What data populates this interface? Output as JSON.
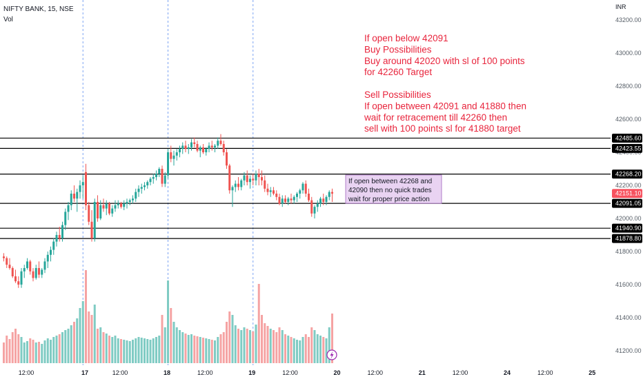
{
  "header": {
    "symbol": "NIFTY BANK, 15, NSE",
    "indicator": "Vol",
    "currency": "INR"
  },
  "colors": {
    "up": "#26a69a",
    "down": "#ef5350",
    "vol_up": "#7fcbc3",
    "vol_down": "#f5a3a3",
    "annotation": "#e8243c",
    "level_line": "#000000",
    "session_line": "#5b8def",
    "note_fill": "#e9d3f2",
    "note_border": "#b07cc8",
    "price_tag": "#f7525f"
  },
  "annotation_top": {
    "lines": [
      "If open below 42091",
      "Buy Possibilities",
      "Buy around 42020 with sl of 100 points",
      "for 42260 Target",
      "",
      "Sell Possibilities",
      "If open between 42091 and 41880 then",
      "wait for retracement till 42260 then",
      "sell with 100 points sl for 41880 target"
    ]
  },
  "annotation_box": {
    "lines": [
      "If open between 42268 and",
      "42090 then no quick trades",
      "wait for proper price action"
    ]
  },
  "chart_data": {
    "type": "candlestick",
    "title": "NIFTY BANK, 15, NSE",
    "y_axis": {
      "unit": "INR",
      "range": [
        41100,
        43300
      ],
      "ticks": [
        41200,
        41400,
        41600,
        41800,
        42000,
        42200,
        42400,
        42600,
        42800,
        43000,
        43200
      ],
      "tick_labels": [
        "41200.00",
        "41400.00",
        "41600.00",
        "41800.00",
        "42000.00",
        "42200.00",
        "42400.00",
        "42600.00",
        "42800.00",
        "43000.00",
        "43200.00"
      ]
    },
    "x_axis": {
      "labels": [
        "12:00",
        "17",
        "12:00",
        "18",
        "12:00",
        "19",
        "12:00",
        "20",
        "12:00",
        "21",
        "12:00",
        "24",
        "12:00",
        "25"
      ],
      "label_positions_bars": [
        8,
        28,
        40,
        56,
        69,
        85,
        98,
        114,
        127,
        143,
        156,
        172,
        185,
        201
      ],
      "session_starts_bars": [
        27,
        56,
        85
      ]
    },
    "last_price": 42151.1,
    "levels": [
      {
        "value": 42485.6,
        "label": "42485.60"
      },
      {
        "value": 42423.55,
        "label": "42423.55"
      },
      {
        "value": 42268.2,
        "label": "42268.20"
      },
      {
        "value": 42091.05,
        "label": "42091.05"
      },
      {
        "value": 41940.9,
        "label": "41940.90"
      },
      {
        "value": 41878.8,
        "label": "41878.80"
      }
    ],
    "candles": [
      [
        41770,
        41790,
        41740,
        41760,
        300
      ],
      [
        41760,
        41770,
        41700,
        41720,
        400
      ],
      [
        41720,
        41760,
        41690,
        41700,
        350
      ],
      [
        41700,
        41710,
        41640,
        41650,
        450
      ],
      [
        41650,
        41690,
        41610,
        41620,
        500
      ],
      [
        41620,
        41650,
        41580,
        41600,
        420
      ],
      [
        41600,
        41700,
        41580,
        41680,
        380
      ],
      [
        41680,
        41720,
        41640,
        41700,
        300
      ],
      [
        41700,
        41760,
        41690,
        41740,
        320
      ],
      [
        41740,
        41750,
        41660,
        41680,
        360
      ],
      [
        41680,
        41700,
        41620,
        41640,
        340
      ],
      [
        41640,
        41720,
        41630,
        41700,
        300
      ],
      [
        41700,
        41740,
        41640,
        41660,
        310
      ],
      [
        41660,
        41700,
        41640,
        41690,
        280
      ],
      [
        41690,
        41760,
        41670,
        41740,
        330
      ],
      [
        41740,
        41800,
        41700,
        41780,
        360
      ],
      [
        41780,
        41830,
        41740,
        41810,
        340
      ],
      [
        41810,
        41880,
        41780,
        41860,
        380
      ],
      [
        41860,
        41920,
        41830,
        41900,
        400
      ],
      [
        41900,
        41950,
        41860,
        41880,
        420
      ],
      [
        41880,
        41980,
        41860,
        41960,
        450
      ],
      [
        41960,
        42060,
        41930,
        42040,
        480
      ],
      [
        42040,
        42100,
        41990,
        42080,
        500
      ],
      [
        42080,
        42170,
        42050,
        42150,
        550
      ],
      [
        42150,
        42200,
        42100,
        42120,
        600
      ],
      [
        42120,
        42180,
        42040,
        42160,
        650
      ],
      [
        42160,
        42230,
        42120,
        42200,
        800
      ],
      [
        42200,
        42260,
        42120,
        42220,
        900
      ],
      [
        42280,
        42330,
        42050,
        42080,
        1350
      ],
      [
        42080,
        42100,
        41960,
        41980,
        750
      ],
      [
        41980,
        42050,
        41860,
        41880,
        700
      ],
      [
        41880,
        42120,
        41860,
        42100,
        850
      ],
      [
        42100,
        42140,
        41980,
        42000,
        500
      ],
      [
        42000,
        42110,
        41990,
        42080,
        520
      ],
      [
        42080,
        42120,
        42040,
        42060,
        450
      ],
      [
        42060,
        42110,
        42020,
        42090,
        430
      ],
      [
        42090,
        42100,
        42020,
        42030,
        400
      ],
      [
        42030,
        42080,
        42010,
        42060,
        380
      ],
      [
        42060,
        42110,
        42040,
        42080,
        400
      ],
      [
        42080,
        42110,
        42060,
        42090,
        360
      ],
      [
        42090,
        42100,
        42060,
        42070,
        350
      ],
      [
        42070,
        42110,
        42050,
        42090,
        340
      ],
      [
        42090,
        42120,
        42060,
        42100,
        330
      ],
      [
        42100,
        42120,
        42080,
        42110,
        320
      ],
      [
        42110,
        42140,
        42090,
        42120,
        340
      ],
      [
        42120,
        42180,
        42100,
        42160,
        360
      ],
      [
        42160,
        42200,
        42130,
        42180,
        380
      ],
      [
        42180,
        42210,
        42150,
        42190,
        370
      ],
      [
        42190,
        42220,
        42170,
        42200,
        360
      ],
      [
        42200,
        42230,
        42180,
        42220,
        350
      ],
      [
        42220,
        42250,
        42200,
        42240,
        340
      ],
      [
        42240,
        42270,
        42210,
        42250,
        360
      ],
      [
        42250,
        42290,
        42230,
        42270,
        380
      ],
      [
        42270,
        42310,
        42250,
        42300,
        400
      ],
      [
        42300,
        42320,
        42190,
        42210,
        700
      ],
      [
        42210,
        42280,
        42190,
        42260,
        520
      ],
      [
        42260,
        42420,
        42240,
        42400,
        1200
      ],
      [
        42400,
        42440,
        42340,
        42360,
        800
      ],
      [
        42360,
        42410,
        42320,
        42380,
        600
      ],
      [
        42380,
        42420,
        42350,
        42400,
        520
      ],
      [
        42400,
        42440,
        42370,
        42420,
        480
      ],
      [
        42420,
        42460,
        42390,
        42440,
        450
      ],
      [
        42440,
        42470,
        42400,
        42420,
        430
      ],
      [
        42420,
        42450,
        42390,
        42430,
        410
      ],
      [
        42430,
        42480,
        42410,
        42460,
        420
      ],
      [
        42460,
        42490,
        42430,
        42450,
        400
      ],
      [
        42450,
        42470,
        42400,
        42410,
        390
      ],
      [
        42410,
        42440,
        42370,
        42430,
        380
      ],
      [
        42430,
        42450,
        42390,
        42400,
        370
      ],
      [
        42400,
        42430,
        42380,
        42420,
        360
      ],
      [
        42420,
        42460,
        42400,
        42440,
        350
      ],
      [
        42440,
        42470,
        42410,
        42430,
        340
      ],
      [
        42430,
        42450,
        42400,
        42440,
        330
      ],
      [
        42440,
        42490,
        42420,
        42470,
        380
      ],
      [
        42470,
        42510,
        42440,
        42450,
        420
      ],
      [
        42450,
        42470,
        42380,
        42400,
        450
      ],
      [
        42400,
        42420,
        42300,
        42320,
        600
      ],
      [
        42320,
        42330,
        42150,
        42170,
        750
      ],
      [
        42170,
        42200,
        42070,
        42190,
        700
      ],
      [
        42190,
        42230,
        42160,
        42210,
        550
      ],
      [
        42210,
        42250,
        42170,
        42190,
        500
      ],
      [
        42190,
        42240,
        42170,
        42230,
        480
      ],
      [
        42230,
        42280,
        42200,
        42260,
        520
      ],
      [
        42260,
        42290,
        42200,
        42220,
        500
      ],
      [
        42220,
        42260,
        42180,
        42240,
        480
      ],
      [
        42240,
        42270,
        42200,
        42230,
        460
      ],
      [
        42230,
        42290,
        42200,
        42270,
        560
      ],
      [
        42270,
        42300,
        42200,
        42250,
        1150
      ],
      [
        42250,
        42290,
        42200,
        42230,
        700
      ],
      [
        42230,
        42260,
        42160,
        42180,
        580
      ],
      [
        42180,
        42210,
        42140,
        42160,
        540
      ],
      [
        42160,
        42190,
        42130,
        42170,
        500
      ],
      [
        42170,
        42190,
        42140,
        42150,
        480
      ],
      [
        42150,
        42170,
        42110,
        42130,
        450
      ],
      [
        42130,
        42150,
        42080,
        42090,
        520
      ],
      [
        42090,
        42140,
        42070,
        42120,
        480
      ],
      [
        42120,
        42140,
        42090,
        42100,
        420
      ],
      [
        42100,
        42130,
        42080,
        42120,
        400
      ],
      [
        42120,
        42150,
        42090,
        42110,
        380
      ],
      [
        42110,
        42140,
        42090,
        42130,
        360
      ],
      [
        42130,
        42160,
        42100,
        42150,
        340
      ],
      [
        42150,
        42180,
        42120,
        42170,
        330
      ],
      [
        42170,
        42220,
        42150,
        42210,
        380
      ],
      [
        42210,
        42230,
        42130,
        42150,
        420
      ],
      [
        42150,
        42180,
        42100,
        42110,
        380
      ],
      [
        42110,
        42130,
        42010,
        42030,
        520
      ],
      [
        42030,
        42080,
        42000,
        42070,
        480
      ],
      [
        42070,
        42110,
        42040,
        42090,
        420
      ],
      [
        42090,
        42130,
        42070,
        42120,
        400
      ],
      [
        42120,
        42150,
        42080,
        42100,
        380
      ],
      [
        42100,
        42140,
        42080,
        42130,
        360
      ],
      [
        42130,
        42170,
        42110,
        42160,
        520
      ],
      [
        42160,
        42180,
        42100,
        42150,
        720
      ]
    ]
  }
}
